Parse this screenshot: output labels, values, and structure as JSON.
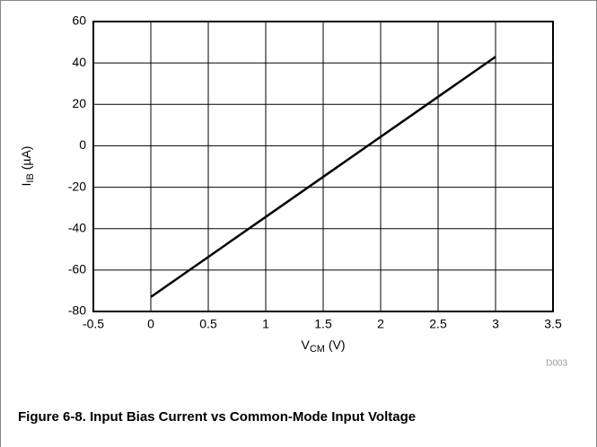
{
  "chart_data": {
    "type": "line",
    "x": [
      0,
      3
    ],
    "series": [
      {
        "name": "IB",
        "color": "#000000",
        "values": [
          -73,
          43
        ]
      }
    ],
    "xlim": [
      -0.5,
      3.5
    ],
    "xticks": [
      -0.5,
      0,
      0.5,
      1,
      1.5,
      2,
      2.5,
      3,
      3.5
    ],
    "ylim": [
      -80,
      60
    ],
    "yticks": [
      -80,
      -60,
      -40,
      -20,
      0,
      20,
      40,
      60
    ],
    "grid": true,
    "xlabel": {
      "main": "V",
      "sub": "CM",
      "rest": " (V)"
    },
    "ylabel": {
      "main": "I",
      "sub": "IB",
      "rest": " (µA)"
    },
    "note": "D003",
    "caption": "Figure 6-8. Input Bias Current vs Common-Mode Input Voltage"
  }
}
